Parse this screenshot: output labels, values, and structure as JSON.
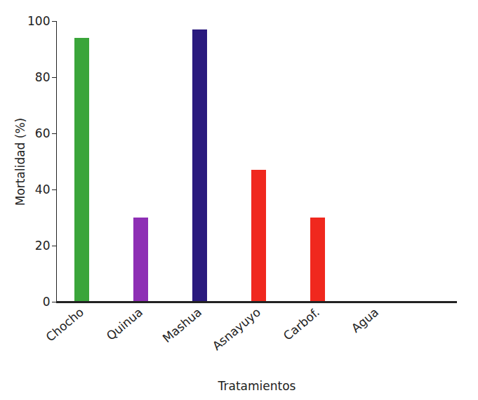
{
  "chart_data": {
    "type": "bar",
    "categories": [
      "Chocho",
      "Quinua",
      "Mashua",
      "Asnayuyo",
      "Carbof.",
      "Agua"
    ],
    "values": [
      94,
      30,
      97,
      47,
      30,
      0
    ],
    "colors": [
      "#3aa53a",
      "#8e2fb5",
      "#2a1a7e",
      "#f0281e",
      "#f0281e",
      "#222222"
    ],
    "x_label": "Tratamientos",
    "y_label": "Mortalidad (%)",
    "ylim": [
      0,
      100
    ],
    "yticks": [
      0,
      20,
      40,
      60,
      80,
      100
    ],
    "grid": false
  }
}
